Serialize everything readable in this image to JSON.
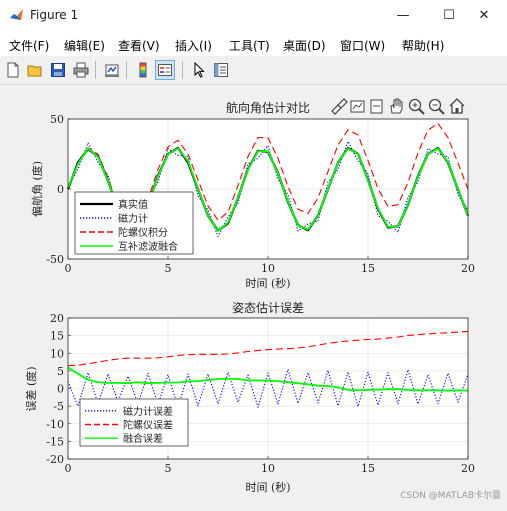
{
  "window": {
    "title": "Figure 1",
    "minimize_glyph": "—",
    "maximize_glyph": "☐",
    "close_glyph": "✕"
  },
  "menu": [
    "文件(F)",
    "编辑(E)",
    "查看(V)",
    "插入(I)",
    "工具(T)",
    "桌面(D)",
    "窗口(W)",
    "帮助(H)"
  ],
  "toolbar_icons": [
    "new-figure-icon",
    "open-file-icon",
    "save-icon",
    "print-icon",
    "link-plot-icon",
    "insert-colorbar-icon",
    "insert-legend-icon",
    "edit-plot-icon",
    "property-inspector-icon"
  ],
  "axes_toolbar_icons": [
    "brush-icon",
    "data-tips-icon",
    "restore-view-icon",
    "pan-icon",
    "zoom-in-icon",
    "zoom-out-icon",
    "home-icon"
  ],
  "colors": {
    "true": "#000000",
    "mag": "#0000ff",
    "gyro": "#ff0000",
    "fused": "#00ff00"
  },
  "chart_data": [
    {
      "type": "line",
      "title": "航向角估计对比",
      "xlabel": "时间 (秒)",
      "ylabel": "偏航角 (度)",
      "xlim": [
        0,
        20
      ],
      "ylim": [
        -50,
        50
      ],
      "xticks": [
        0,
        5,
        10,
        15,
        20
      ],
      "yticks": [
        -50,
        0,
        50
      ],
      "grid": true,
      "legend_position": "bottom-left",
      "series": [
        {
          "name": "真实值",
          "color": "#000000",
          "style": "solid",
          "y": [
            0,
            19,
            28.5,
            23.3,
            5.9,
            -14.3,
            -27.5,
            -26.7,
            -11.3,
            9.5,
            25.1,
            29.3,
            18.9,
            -0.1,
            -19.1,
            -29.7,
            -24.6,
            -6.1,
            14.2,
            27.3,
            26.6,
            11.4,
            -9.4,
            -25.8,
            -29.5,
            -18.9,
            -0.1,
            18.9,
            29.3,
            25.1,
            6.4,
            -14.3,
            -27.5,
            -26.7,
            -11.3,
            9.4,
            25.1,
            29.3,
            18.7,
            -0.1,
            -19.1
          ]
        },
        {
          "name": "磁力计",
          "color": "#0000ff",
          "style": "dotted",
          "y": [
            2,
            14,
            33,
            19,
            10,
            -18,
            -24,
            -31,
            -7,
            5,
            29,
            24,
            23,
            -5,
            -15,
            -34,
            -20,
            -10,
            18,
            22,
            31,
            7,
            -4,
            -30,
            -25,
            -23,
            5,
            14,
            34,
            20,
            11,
            -19,
            -23,
            -31,
            -6,
            5,
            29,
            25,
            23,
            -4,
            -15
          ]
        },
        {
          "name": "陀螺仪积分",
          "color": "#ff0000",
          "style": "dashed",
          "y": [
            0,
            19.5,
            29.5,
            24.8,
            7.9,
            -11.8,
            -24.5,
            -23.2,
            -7.3,
            14,
            30.1,
            34.8,
            24.9,
            6.4,
            -12.1,
            -22.2,
            -16.6,
            2.4,
            23.2,
            36.8,
            36.6,
            21.9,
            1.6,
            -14.3,
            -17.5,
            -6.4,
            12.4,
            31.4,
            42.3,
            38.6,
            20.4,
            0.2,
            -12.5,
            -11.2,
            4.7,
            25.9,
            42.1,
            46.8,
            36.7,
            18.4,
            -0.1
          ]
        },
        {
          "name": "互补滤波融合",
          "color": "#00ff00",
          "style": "solid",
          "y": [
            1,
            18,
            29,
            23,
            6,
            -14,
            -27,
            -27,
            -11,
            9,
            25,
            29,
            20,
            0,
            -19,
            -30,
            -24,
            -6,
            14,
            27,
            27,
            11,
            -9,
            -26,
            -29,
            -19,
            0,
            19,
            29,
            25,
            6,
            -14,
            -27,
            -27,
            -11,
            9,
            25,
            29,
            19,
            0,
            -19
          ]
        }
      ]
    },
    {
      "type": "line",
      "title": "姿态估计误差",
      "xlabel": "时间 (秒)",
      "ylabel": "误差 (度)",
      "xlim": [
        0,
        20
      ],
      "ylim": [
        -20,
        20
      ],
      "xticks": [
        0,
        5,
        10,
        15,
        20
      ],
      "yticks": [
        -20,
        -15,
        -10,
        -5,
        0,
        5,
        10,
        15,
        20
      ],
      "grid": true,
      "legend_position": "bottom-left",
      "series": [
        {
          "name": "磁力计误差",
          "color": "#0000ff",
          "style": "dotted",
          "y": [
            2,
            -5,
            4.5,
            -4.3,
            4.1,
            -3.7,
            3.5,
            -4.3,
            4.3,
            -4.5,
            3.9,
            -5.3,
            4.1,
            -4.9,
            4.1,
            -4.3,
            4.6,
            -3.9,
            3.8,
            -5.3,
            4.4,
            -4.4,
            5.4,
            -4.2,
            4.5,
            -4.1,
            5.1,
            -4.9,
            4.7,
            -5.1,
            4.6,
            -4.7,
            4.5,
            -4.3,
            5.3,
            -4.4,
            3.9,
            -4.3,
            4.3,
            -3.9,
            4.1
          ]
        },
        {
          "name": "陀螺仪误差",
          "color": "#ff0000",
          "style": "dashed",
          "y": [
            6.5,
            6.6,
            7,
            7.5,
            8,
            8.4,
            8.6,
            8.6,
            8.6,
            8.7,
            9,
            9.4,
            9.6,
            9.7,
            9.7,
            9.7,
            9.8,
            10.1,
            10.5,
            10.8,
            11,
            11.2,
            11.3,
            11.5,
            11.8,
            12.3,
            12.8,
            13.2,
            13.5,
            13.7,
            13.9,
            14,
            14.3,
            14.6,
            15,
            15.3,
            15.5,
            15.7,
            15.8,
            16,
            16.2
          ]
        },
        {
          "name": "融合误差",
          "color": "#00ff00",
          "style": "solid",
          "y": [
            6,
            4.2,
            2.5,
            1.8,
            1.6,
            1.6,
            1.5,
            1.8,
            1.5,
            1.6,
            1.7,
            1.7,
            2,
            2.1,
            2.4,
            2.7,
            2.8,
            2.7,
            2.3,
            2.3,
            2.2,
            2.1,
            1.8,
            1.5,
            1.2,
            0.8,
            0.7,
            0.3,
            -0.4,
            -0.5,
            -0.4,
            -0.3,
            -0.2,
            -0.2,
            -0.4,
            -0.5,
            -0.5,
            -0.5,
            -0.6,
            -0.5,
            -0.6
          ]
        }
      ]
    }
  ],
  "watermark": "CSDN @MATLAB卡尔曼"
}
